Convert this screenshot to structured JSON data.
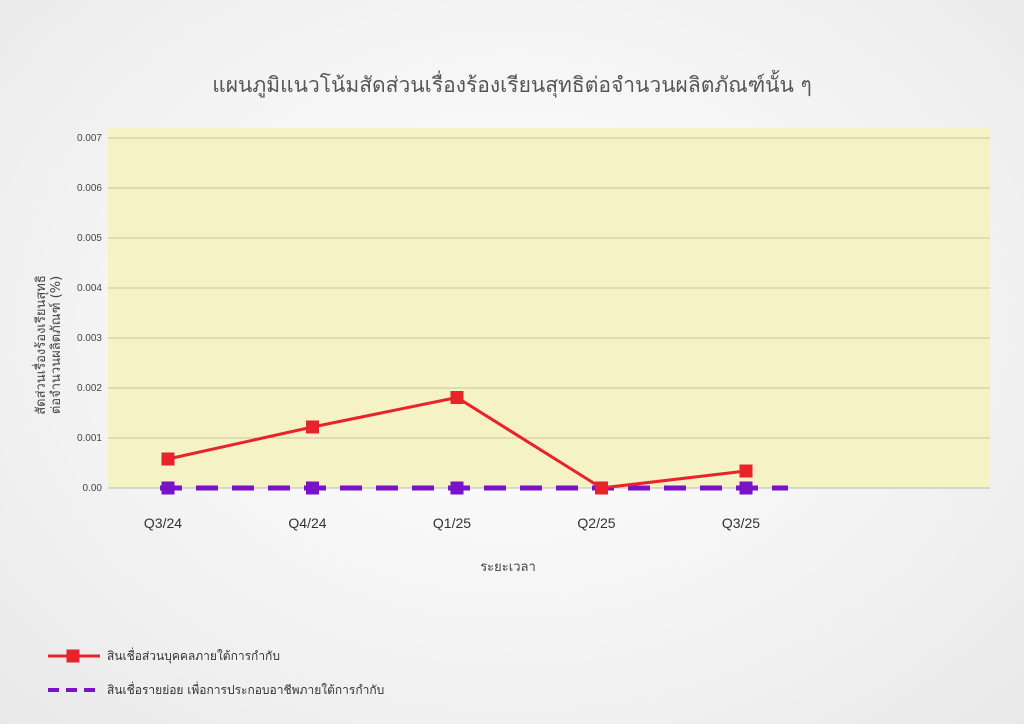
{
  "chart_data": {
    "type": "line",
    "title": "แผนภูมิแนวโน้มสัดส่วนเรื่องร้องเรียนสุทธิต่อจำนวนผลิตภัณฑ์นั้น ๆ",
    "xlabel": "ระยะเวลา",
    "ylabel_lines": [
      "สัดส่วนเรื่องร้องเรียนสุทธิ",
      "ต่อจำนวนผลิตภัณฑ์ (%)"
    ],
    "categories": [
      "Q3/24",
      "Q4/24",
      "Q1/25",
      "Q2/25",
      "Q3/25"
    ],
    "ylim": [
      0,
      0.007
    ],
    "yticks": [
      "0.00",
      "0.001",
      "0.002",
      "0.003",
      "0.004",
      "0.005",
      "0.006",
      "0.007"
    ],
    "grid": true,
    "legend_position": "bottom-left",
    "plot_background": "#f5f2c6",
    "series": [
      {
        "name": "สินเชื่อส่วนบุคคลภายใต้การกำกับ",
        "values": [
          0.00058,
          0.00122,
          0.00181,
          0.0,
          0.00034
        ],
        "color": "#e8232a",
        "line_style": "solid",
        "marker": "square"
      },
      {
        "name": "สินเชื่อรายย่อย เพื่อการประกอบอาชีพภายใต้การกำกับ",
        "values": [
          0.0,
          0.0,
          0.0,
          0.0,
          0.0
        ],
        "color": "#7a12c8",
        "line_style": "dashed",
        "marker": "square"
      }
    ]
  }
}
